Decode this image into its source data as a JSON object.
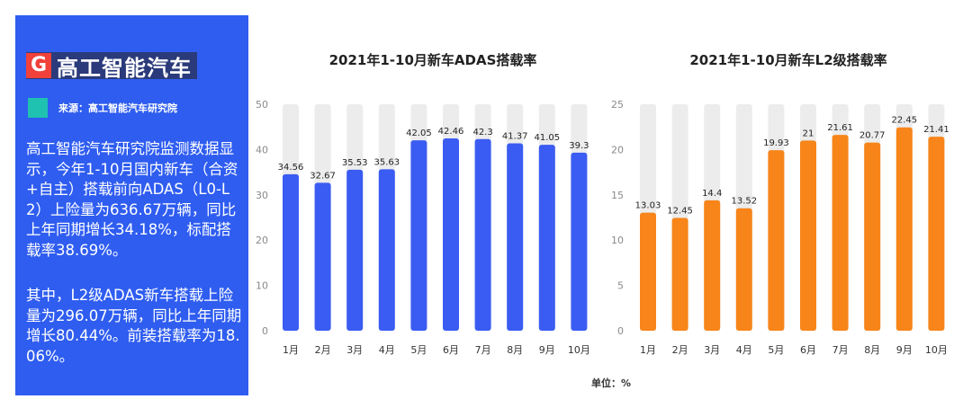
{
  "panel": {
    "logo_mark": "G",
    "logo_text": "高工智能汽车",
    "source": "来源：高工智能汽车研究院",
    "paragraph1": "高工智能汽车研究院监测数据显示，今年1-10月国内新车（合资+自主）搭载前向ADAS（L0-L2）上险量为636.67万辆，同比上年同期增长34.18%，标配搭载率38.69%。",
    "paragraph2": "其中，L2级ADAS新车搭载上险量为296.07万辆，同比上年同期增长80.44%。前装搭载率为18.06%。",
    "colors": {
      "background": "#2f5df0",
      "chip": "#1fc1b0",
      "logo_mark": "#f0413a"
    }
  },
  "unit_label": "单位：%",
  "chart_data": [
    {
      "type": "bar",
      "title": "2021年1-10月新车ADAS搭载率",
      "categories": [
        "1月",
        "2月",
        "3月",
        "4月",
        "5月",
        "6月",
        "7月",
        "8月",
        "9月",
        "10月"
      ],
      "values": [
        34.56,
        32.67,
        35.53,
        35.63,
        42.05,
        42.46,
        42.3,
        41.37,
        41.05,
        39.3
      ],
      "value_labels": [
        "34.56",
        "32.67",
        "35.53",
        "35.63",
        "42.05",
        "42.46",
        "42.3",
        "41.37",
        "41.05",
        "39.3"
      ],
      "ylim": [
        0,
        50
      ],
      "yticks": [
        "0",
        "10",
        "20",
        "30",
        "40",
        "50"
      ],
      "color": "#3a5cf2",
      "track_color": "#ececec"
    },
    {
      "type": "bar",
      "title": "2021年1-10月新车L2级搭载率",
      "categories": [
        "1月",
        "2月",
        "3月",
        "4月",
        "5月",
        "6月",
        "7月",
        "8月",
        "9月",
        "10月"
      ],
      "values": [
        13.03,
        12.45,
        14.4,
        13.52,
        19.93,
        21,
        21.61,
        20.77,
        22.45,
        21.41
      ],
      "value_labels": [
        "13.03",
        "12.45",
        "14.4",
        "13.52",
        "19.93",
        "21",
        "21.61",
        "20.77",
        "22.45",
        "21.41"
      ],
      "ylim": [
        0,
        25
      ],
      "yticks": [
        "0",
        "5",
        "10",
        "15",
        "20",
        "25"
      ],
      "color": "#f7851a",
      "track_color": "#ececec"
    }
  ]
}
